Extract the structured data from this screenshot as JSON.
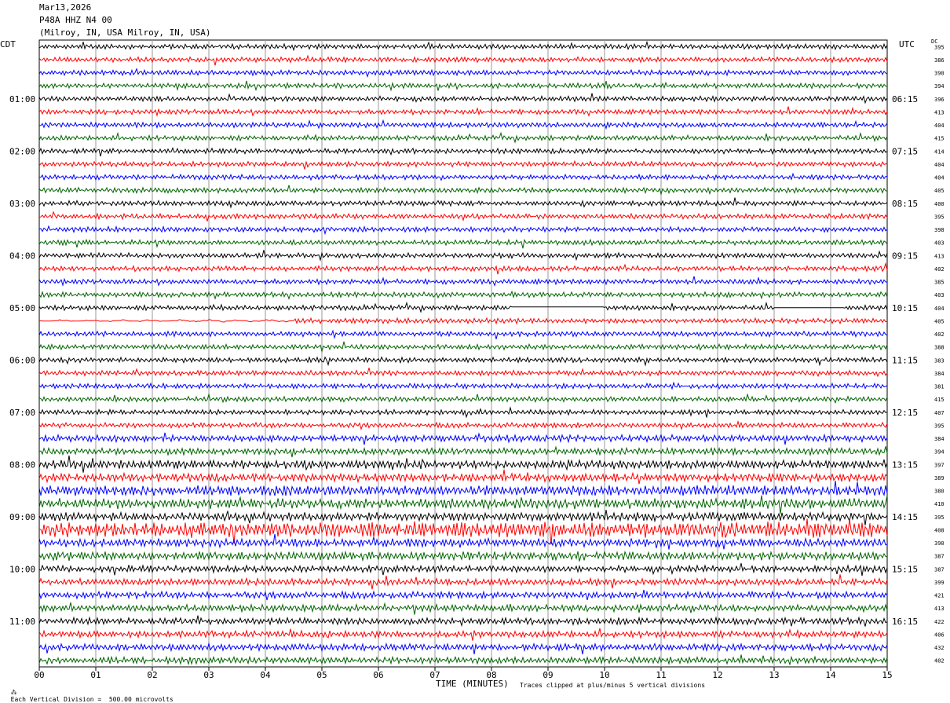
{
  "header": {
    "date": "Mar13,2026",
    "station": "P48A HHZ N4 00",
    "location": "(Milroy, IN, USA Milroy, IN, USA)"
  },
  "left_axis_title": "CDT",
  "right_axis_title": "UTC",
  "dc_title": "DC",
  "x_axis_title": "TIME (MINUTES)",
  "footer": {
    "left": "Each Vertical Division =  500.00 microvolts",
    "right": "Traces clipped at plus/minus 5 vertical divisions"
  },
  "colors": {
    "trace_cycle": [
      "#000000",
      "#ff0000",
      "#0000ff",
      "#006400"
    ],
    "grid": "#9a9a9a"
  },
  "chart_data": {
    "type": "line",
    "title": "P48A HHZ N4 00",
    "xlabel": "TIME (MINUTES)",
    "xlim": [
      0,
      15
    ],
    "x_ticks": [
      "00",
      "01",
      "02",
      "03",
      "04",
      "05",
      "06",
      "07",
      "08",
      "09",
      "10",
      "11",
      "12",
      "13",
      "14",
      "15"
    ],
    "left_hour_labels": [
      "01:00",
      "02:00",
      "03:00",
      "04:00",
      "05:00",
      "06:00",
      "07:00",
      "08:00",
      "09:00",
      "10:00",
      "11:00"
    ],
    "right_hour_labels": [
      "06:15",
      "07:15",
      "08:15",
      "09:15",
      "10:15",
      "11:15",
      "12:15",
      "13:15",
      "14:15",
      "15:15",
      "16:15"
    ],
    "trace_dc_values": [
      395,
      386,
      390,
      394,
      396,
      413,
      404,
      415,
      414,
      404,
      404,
      405,
      400,
      395,
      398,
      403,
      413,
      402,
      385,
      403,
      404,
      405,
      402,
      388,
      383,
      384,
      381,
      415,
      407,
      395,
      384,
      394,
      397,
      389,
      380,
      410,
      395,
      408,
      390,
      387,
      387,
      399,
      421,
      413,
      422,
      406,
      432,
      402
    ],
    "trace_count": 48,
    "trace_interval_minutes": 15,
    "trace_amplitude_levels": [
      3,
      3,
      3,
      3,
      3,
      3,
      3,
      3,
      3,
      3,
      3,
      3,
      3,
      3,
      3,
      3,
      3,
      3,
      3,
      3,
      3,
      3,
      3,
      3,
      3,
      3,
      3,
      3,
      3,
      3,
      4,
      4,
      5,
      5,
      6,
      6,
      5,
      6,
      5,
      5,
      4,
      4,
      4,
      4,
      4,
      4,
      4,
      4
    ]
  }
}
